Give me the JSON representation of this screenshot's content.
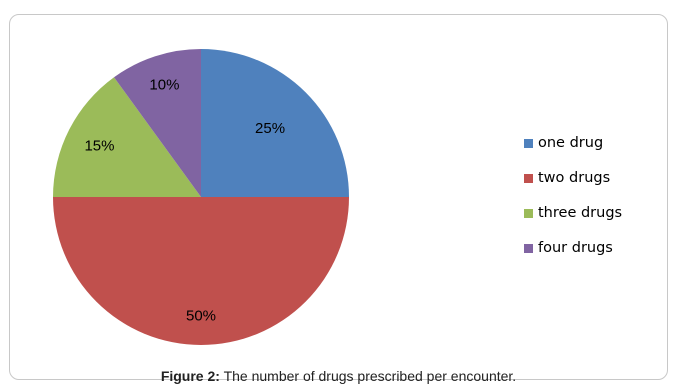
{
  "chart_data": {
    "type": "pie",
    "categories": [
      "one drug",
      "two drugs",
      "three drugs",
      "four drugs"
    ],
    "values": [
      25,
      50,
      15,
      10
    ],
    "labels": [
      "25%",
      "50%",
      "15%",
      "10%"
    ],
    "colors": [
      "#4f81bd",
      "#c0504d",
      "#9bbb59",
      "#8064a2"
    ],
    "start": "12 o'clock, clockwise",
    "legend_position": "right"
  },
  "caption": {
    "prefix": "Figure 2:",
    "text": " The number of drugs prescribed per encounter."
  }
}
